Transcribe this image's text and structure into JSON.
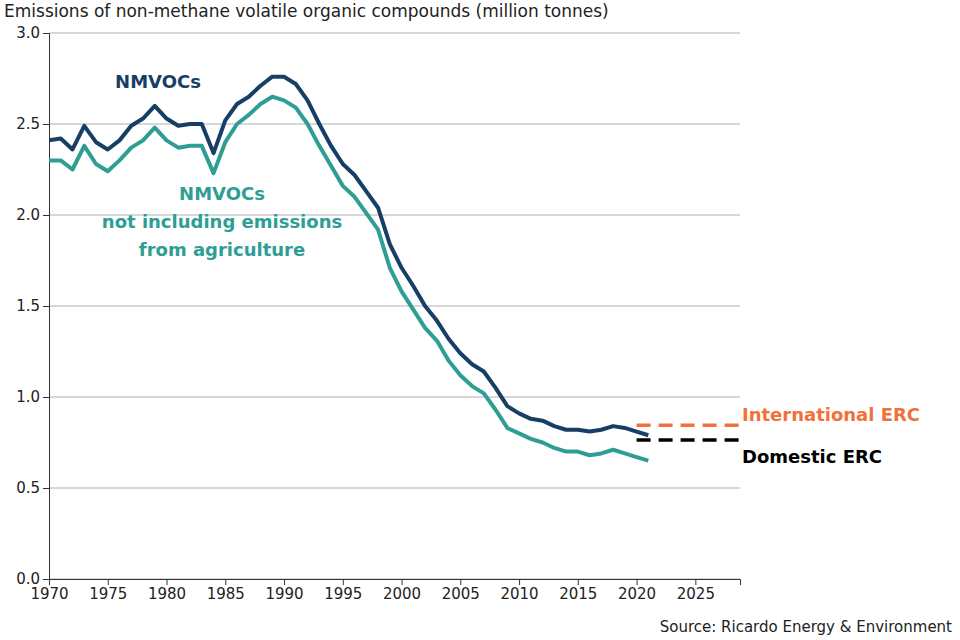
{
  "chart_data": {
    "type": "line",
    "title": "Emissions of non-methane volatile organic compounds (million tonnes)",
    "source": "Source: Ricardo Energy & Environment",
    "x": [
      1970,
      1971,
      1972,
      1973,
      1974,
      1975,
      1976,
      1977,
      1978,
      1979,
      1980,
      1981,
      1982,
      1983,
      1984,
      1985,
      1986,
      1987,
      1988,
      1989,
      1990,
      1991,
      1992,
      1993,
      1994,
      1995,
      1996,
      1997,
      1998,
      1999,
      2000,
      2001,
      2002,
      2003,
      2004,
      2005,
      2006,
      2007,
      2008,
      2009,
      2010,
      2011,
      2012,
      2013,
      2014,
      2015,
      2016,
      2017,
      2018,
      2019,
      2020,
      2021
    ],
    "series": [
      {
        "name": "NMVOCs",
        "color": "#173f66",
        "values": [
          2.41,
          2.42,
          2.36,
          2.49,
          2.4,
          2.36,
          2.41,
          2.49,
          2.53,
          2.6,
          2.53,
          2.49,
          2.5,
          2.5,
          2.34,
          2.52,
          2.61,
          2.65,
          2.71,
          2.76,
          2.76,
          2.72,
          2.63,
          2.5,
          2.38,
          2.28,
          2.22,
          2.13,
          2.04,
          1.84,
          1.71,
          1.61,
          1.5,
          1.42,
          1.32,
          1.24,
          1.18,
          1.14,
          1.05,
          0.95,
          0.91,
          0.88,
          0.87,
          0.84,
          0.82,
          0.82,
          0.81,
          0.82,
          0.84,
          0.83,
          0.81,
          0.79
        ]
      },
      {
        "name": "NMVOCs\nnot including emissions\nfrom agriculture",
        "color": "#2e9e95",
        "values": [
          2.3,
          2.3,
          2.25,
          2.38,
          2.28,
          2.24,
          2.3,
          2.37,
          2.41,
          2.48,
          2.41,
          2.37,
          2.38,
          2.38,
          2.23,
          2.4,
          2.5,
          2.55,
          2.61,
          2.65,
          2.63,
          2.59,
          2.5,
          2.38,
          2.27,
          2.16,
          2.1,
          2.01,
          1.92,
          1.71,
          1.58,
          1.48,
          1.38,
          1.31,
          1.2,
          1.12,
          1.06,
          1.02,
          0.93,
          0.83,
          0.8,
          0.77,
          0.75,
          0.72,
          0.7,
          0.7,
          0.68,
          0.69,
          0.71,
          0.69,
          0.67,
          0.65
        ]
      }
    ],
    "reference_lines": [
      {
        "name": "International ERC",
        "value": 0.845,
        "x": [
          2020,
          2028.8
        ],
        "color": "#f0713a",
        "line_style": "dashed"
      },
      {
        "name": "Domestic ERC",
        "value": 0.764,
        "x": [
          2020,
          2028.8
        ],
        "color": "#000000",
        "line_style": "dashed"
      }
    ],
    "xlim": [
      1970,
      2028.8
    ],
    "xticks": [
      1970,
      1975,
      1980,
      1985,
      1990,
      1995,
      2000,
      2005,
      2010,
      2015,
      2020,
      2025
    ],
    "ylim": [
      0,
      3.0
    ],
    "yticks": [
      {
        "value": 0,
        "label": "0.0"
      },
      0.5,
      {
        "value": 1,
        "label": "1.0"
      },
      1.5,
      {
        "value": 2,
        "label": "2.0"
      },
      2.5,
      {
        "value": 3,
        "label": "3.0"
      }
    ],
    "grid": true
  }
}
